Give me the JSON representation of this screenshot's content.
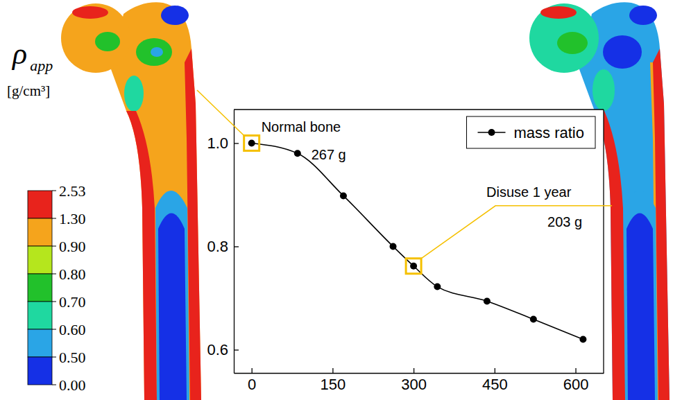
{
  "chart_data": {
    "type": "line",
    "x": [
      0,
      85,
      170,
      262,
      300,
      344,
      436,
      522,
      614
    ],
    "series": [
      {
        "name": "mass ratio",
        "color": "#000000",
        "marker": "circle",
        "line_style": "solid",
        "values": [
          1.0,
          0.98,
          0.898,
          0.8,
          0.762,
          0.722,
          0.694,
          0.659,
          0.62
        ]
      }
    ],
    "xlim": [
      -33,
      652
    ],
    "xticks": [
      0,
      150,
      300,
      450,
      600
    ],
    "ylim": [
      0.555,
      1.065
    ],
    "yticks": [
      0.6,
      0.8,
      {
        "value": 1,
        "label": "1.0"
      }
    ],
    "grid": false,
    "legend": "upper right",
    "annotations": [
      {
        "label": "Normal bone",
        "mass": "267 g",
        "x": 0,
        "y": 1.0
      },
      {
        "label": "Disuse 1 year",
        "mass": "203 g",
        "x": 300,
        "y": 0.762
      }
    ],
    "colorbar": {
      "symbol": "ρ",
      "subscript": "app",
      "unit": "[g/cm³]",
      "ticks": [
        2.53,
        {
          "value": 1.3,
          "label": "1.30"
        },
        {
          "value": 0.9,
          "label": "0.90"
        },
        {
          "value": 0.8,
          "label": "0.80"
        },
        {
          "value": 0.7,
          "label": "0.70"
        },
        {
          "value": 0.6,
          "label": "0.60"
        },
        {
          "value": 0.5,
          "label": "0.50"
        },
        {
          "value": 0,
          "label": "0.00"
        }
      ],
      "colors": [
        "#e8231c",
        "#f5a41c",
        "#b5e61d",
        "#22c12b",
        "#1fd8a0",
        "#2aa5e6",
        "#1530e6"
      ]
    }
  }
}
